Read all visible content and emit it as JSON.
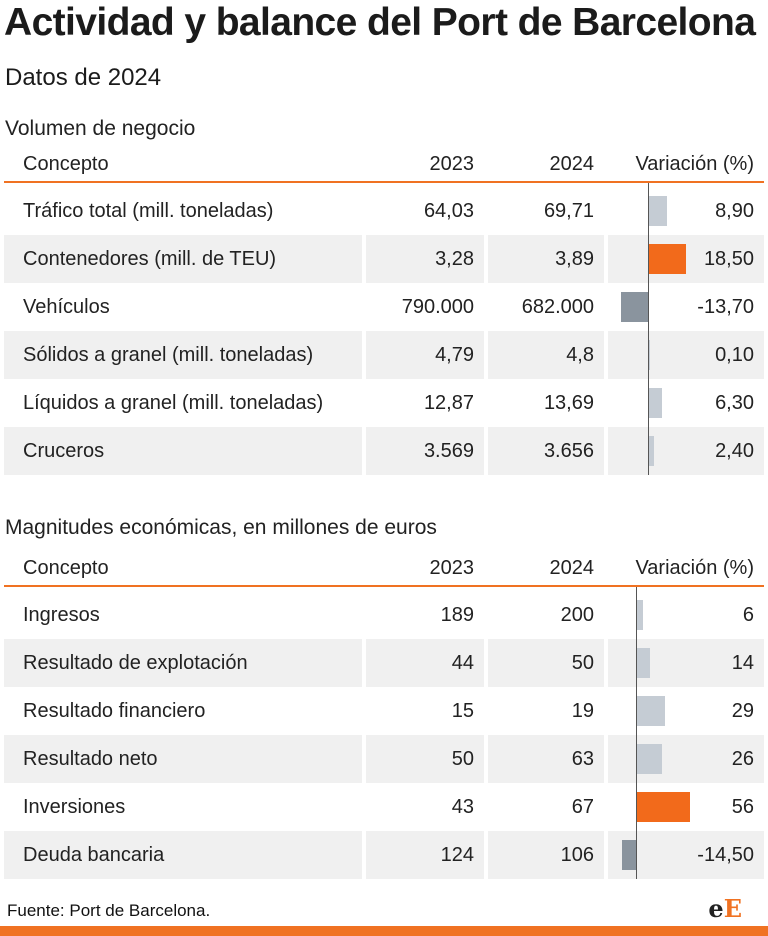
{
  "title": "Actividad y balance del Port de Barcelona",
  "subtitle": "Datos de 2024",
  "chart_data": [
    {
      "type": "table",
      "title": "Volumen de negocio",
      "columns": [
        "Concepto",
        "2023",
        "2024",
        "Variación (%)"
      ],
      "rows": [
        {
          "concepto": "Tráfico total (mill. toneladas)",
          "y2023": "64,03",
          "y2024": "69,71",
          "variacion": "8,90",
          "value": 8.9,
          "highlight": false
        },
        {
          "concepto": "Contenedores (mill. de TEU)",
          "y2023": "3,28",
          "y2024": "3,89",
          "variacion": "18,50",
          "value": 18.5,
          "highlight": true
        },
        {
          "concepto": "Vehículos",
          "y2023": "790.000",
          "y2024": "682.000",
          "variacion": "-13,70",
          "value": -13.7,
          "highlight": false
        },
        {
          "concepto": "Sólidos a granel (mill. toneladas)",
          "y2023": "4,79",
          "y2024": "4,8",
          "variacion": "0,10",
          "value": 0.1,
          "highlight": false
        },
        {
          "concepto": "Líquidos a granel (mill. toneladas)",
          "y2023": "12,87",
          "y2024": "13,69",
          "variacion": "6,30",
          "value": 6.3,
          "highlight": false
        },
        {
          "concepto": "Cruceros",
          "y2023": "3.569",
          "y2024": "3.656",
          "variacion": "2,40",
          "value": 2.4,
          "highlight": false
        }
      ],
      "bar_range": [
        -14,
        19
      ]
    },
    {
      "type": "table",
      "title": "Magnitudes económicas, en millones de euros",
      "columns": [
        "Concepto",
        "2023",
        "2024",
        "Variación (%)"
      ],
      "rows": [
        {
          "concepto": "Ingresos",
          "y2023": "189",
          "y2024": "200",
          "variacion": "6",
          "value": 6,
          "highlight": false
        },
        {
          "concepto": "Resultado de explotación",
          "y2023": "44",
          "y2024": "50",
          "variacion": "14",
          "value": 14,
          "highlight": false
        },
        {
          "concepto": "Resultado financiero",
          "y2023": "15",
          "y2024": "19",
          "variacion": "29",
          "value": 29,
          "highlight": false
        },
        {
          "concepto": "Resultado neto",
          "y2023": "50",
          "y2024": "63",
          "variacion": "26",
          "value": 26,
          "highlight": false
        },
        {
          "concepto": "Inversiones",
          "y2023": "43",
          "y2024": "67",
          "variacion": "56",
          "value": 56,
          "highlight": true
        },
        {
          "concepto": "Deuda bancaria",
          "y2023": "124",
          "y2024": "106",
          "variacion": "-14,50",
          "value": -14.5,
          "highlight": false
        }
      ],
      "bar_range": [
        -15,
        56
      ]
    }
  ],
  "source": "Fuente: Port de Barcelona.",
  "logo": {
    "e": "e",
    "E": "E"
  },
  "colors": {
    "accent": "#f07222",
    "highlight_bar": "#f26a1b",
    "positive_bar": "#c5ccd4",
    "negative_bar": "#8a949e",
    "row_shade": "#f0f0f0"
  }
}
